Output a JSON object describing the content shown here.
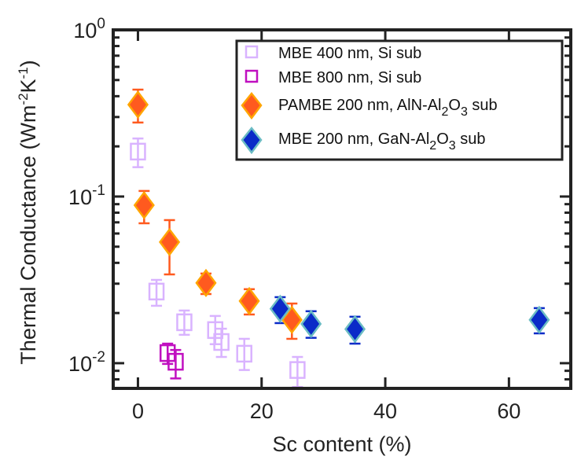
{
  "chart_data": {
    "type": "scatter",
    "title": "",
    "xlabel": "Sc content (%)",
    "ylabel": {
      "base": "Thermal Conductance (Wm",
      "exp1": "-2",
      "mid": "K",
      "exp2": "-1",
      "end": ")"
    },
    "xscale": "linear",
    "yscale": "log",
    "xlim": [
      -4,
      70
    ],
    "ylim": [
      0.00706,
      1
    ],
    "xticks": [
      {
        "value": 0,
        "label": "0"
      },
      {
        "value": 20,
        "label": "20"
      },
      {
        "value": 40,
        "label": "40"
      },
      {
        "value": 60,
        "label": "60"
      }
    ],
    "yticks": [
      {
        "value": 1,
        "base": "10",
        "exp": "0"
      },
      {
        "value": 0.1,
        "base": "10",
        "exp": "-1"
      },
      {
        "value": 0.01,
        "base": "10",
        "exp": "-2"
      }
    ],
    "grid": false,
    "legend_position": "top-right",
    "series": [
      {
        "name": "MBE 400 nm, Si sub",
        "legend": {
          "text": "MBE 400 nm, Si sub"
        },
        "marker": "square-open",
        "color": "#d9b3ff",
        "edge_color": "#d9b3ff",
        "points": [
          {
            "x": 0,
            "y": 0.186,
            "ylow": 0.15,
            "yhigh": 0.223
          },
          {
            "x": 3.0,
            "y": 0.0269,
            "ylow": 0.0221,
            "yhigh": 0.0316
          },
          {
            "x": 7.5,
            "y": 0.0176,
            "ylow": 0.0148,
            "yhigh": 0.0207
          },
          {
            "x": 12.5,
            "y": 0.0158,
            "ylow": 0.013,
            "yhigh": 0.0192
          },
          {
            "x": 13.5,
            "y": 0.0134,
            "ylow": 0.0109,
            "yhigh": 0.0161
          },
          {
            "x": 17.2,
            "y": 0.0114,
            "ylow": 0.0091,
            "yhigh": 0.014
          },
          {
            "x": 25.8,
            "y": 0.0091,
            "ylow": 0.0072,
            "yhigh": 0.0109
          }
        ]
      },
      {
        "name": "MBE 800 nm, Si sub",
        "legend": {
          "text": "MBE 800 nm, Si sub"
        },
        "marker": "square-open",
        "color": "#c010c0",
        "edge_color": "#c010c0",
        "points": [
          {
            "x": 4.8,
            "y": 0.0115,
            "ylow": 0.0099,
            "yhigh": 0.0131
          },
          {
            "x": 6.1,
            "y": 0.0102,
            "ylow": 0.0081,
            "yhigh": 0.012
          }
        ]
      },
      {
        "name": "PAMBE 200 nm, AlN-Al2O3 sub",
        "legend": {
          "text": "PAMBE 200 nm, AlN-Al",
          "sub1": "2",
          "mid": "O",
          "sub2": "3",
          "end": " sub"
        },
        "marker": "diamond",
        "color": "#ff5a1f",
        "edge_color": "#ffa500",
        "points": [
          {
            "x": 0,
            "y": 0.356,
            "ylow": 0.278,
            "yhigh": 0.438
          },
          {
            "x": 1.0,
            "y": 0.0887,
            "ylow": 0.0691,
            "yhigh": 0.108
          },
          {
            "x": 5.1,
            "y": 0.0533,
            "ylow": 0.0341,
            "yhigh": 0.0722
          },
          {
            "x": 11.0,
            "y": 0.0303,
            "ylow": 0.026,
            "yhigh": 0.0345
          },
          {
            "x": 18.0,
            "y": 0.0236,
            "ylow": 0.0196,
            "yhigh": 0.0278
          },
          {
            "x": 24.9,
            "y": 0.0182,
            "ylow": 0.014,
            "yhigh": 0.0228
          }
        ]
      },
      {
        "name": "MBE 200 nm, GaN-Al2O3 sub",
        "legend": {
          "text": "MBE 200 nm, GaN-Al",
          "sub1": "2",
          "mid": "O",
          "sub2": "3",
          "end": " sub"
        },
        "marker": "diamond",
        "color": "#0a2ac8",
        "edge_color": "#6bbcc4",
        "points": [
          {
            "x": 23.0,
            "y": 0.0212,
            "ylow": 0.0174,
            "yhigh": 0.0249
          },
          {
            "x": 28.0,
            "y": 0.0172,
            "ylow": 0.0142,
            "yhigh": 0.0205
          },
          {
            "x": 35.1,
            "y": 0.016,
            "ylow": 0.0131,
            "yhigh": 0.019
          },
          {
            "x": 64.9,
            "y": 0.0182,
            "ylow": 0.0151,
            "yhigh": 0.0214
          }
        ]
      }
    ]
  }
}
